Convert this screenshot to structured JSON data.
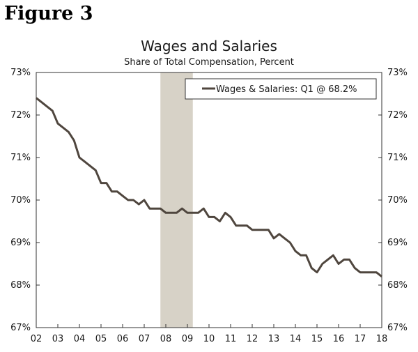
{
  "figure_label": "Figure 3",
  "chart_data": {
    "type": "line",
    "title": "Wages and Salaries",
    "subtitle": "Share of Total Compensation, Percent",
    "ylim": [
      67,
      73
    ],
    "yticks": [
      67,
      68,
      69,
      70,
      71,
      72,
      73
    ],
    "y_tick_labels": [
      "67%",
      "68%",
      "69%",
      "70%",
      "71%",
      "72%",
      "73%"
    ],
    "x_range": [
      2002,
      2018
    ],
    "x_ticks": [
      2002,
      2003,
      2004,
      2005,
      2006,
      2007,
      2008,
      2009,
      2010,
      2011,
      2012,
      2013,
      2014,
      2015,
      2016,
      2017,
      2018
    ],
    "x_tick_labels": [
      "02",
      "03",
      "04",
      "05",
      "06",
      "07",
      "08",
      "09",
      "10",
      "11",
      "12",
      "13",
      "14",
      "15",
      "16",
      "17",
      "18"
    ],
    "recession": [
      2007.75,
      2009.25
    ],
    "legend": {
      "label": "Wages & Salaries: Q1 @ 68.2%",
      "position": "top-right"
    },
    "series": [
      {
        "name": "Wages & Salaries",
        "color": "#4f463e",
        "x": [
          2002.0,
          2002.25,
          2002.5,
          2002.75,
          2003.0,
          2003.25,
          2003.5,
          2003.75,
          2004.0,
          2004.25,
          2004.5,
          2004.75,
          2005.0,
          2005.25,
          2005.5,
          2005.75,
          2006.0,
          2006.25,
          2006.5,
          2006.75,
          2007.0,
          2007.25,
          2007.5,
          2007.75,
          2008.0,
          2008.25,
          2008.5,
          2008.75,
          2009.0,
          2009.25,
          2009.5,
          2009.75,
          2010.0,
          2010.25,
          2010.5,
          2010.75,
          2011.0,
          2011.25,
          2011.5,
          2011.75,
          2012.0,
          2012.25,
          2012.5,
          2012.75,
          2013.0,
          2013.25,
          2013.5,
          2013.75,
          2014.0,
          2014.25,
          2014.5,
          2014.75,
          2015.0,
          2015.25,
          2015.5,
          2015.75,
          2016.0,
          2016.25,
          2016.5,
          2016.75,
          2017.0,
          2017.25,
          2017.5,
          2017.75,
          2018.0
        ],
        "values": [
          72.4,
          72.3,
          72.2,
          72.1,
          71.8,
          71.7,
          71.6,
          71.4,
          71.0,
          70.9,
          70.8,
          70.7,
          70.4,
          70.4,
          70.2,
          70.2,
          70.1,
          70.0,
          70.0,
          69.9,
          70.0,
          69.8,
          69.8,
          69.8,
          69.7,
          69.7,
          69.7,
          69.8,
          69.7,
          69.7,
          69.7,
          69.8,
          69.6,
          69.6,
          69.5,
          69.7,
          69.6,
          69.4,
          69.4,
          69.4,
          69.3,
          69.3,
          69.3,
          69.3,
          69.1,
          69.2,
          69.1,
          69.0,
          68.8,
          68.7,
          68.7,
          68.4,
          68.3,
          68.5,
          68.6,
          68.7,
          68.5,
          68.6,
          68.6,
          68.4,
          68.3,
          68.3,
          68.3,
          68.3,
          68.2
        ]
      }
    ]
  }
}
